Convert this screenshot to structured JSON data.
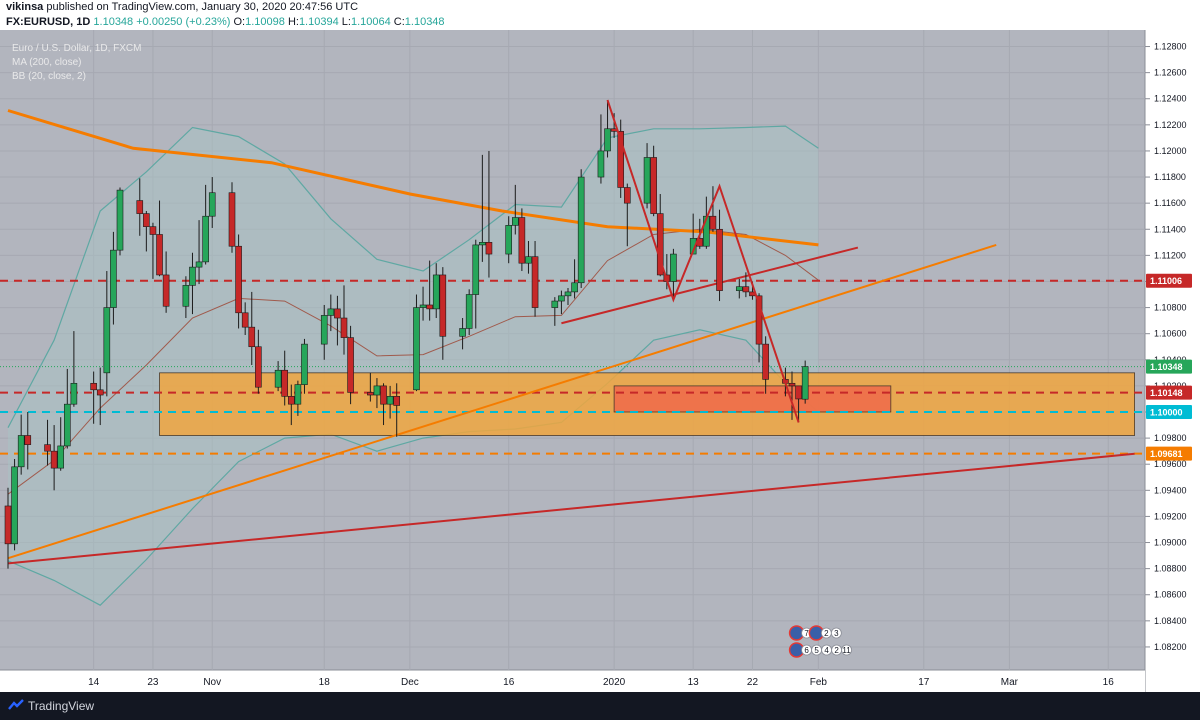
{
  "header": {
    "author": "vikinsa",
    "published_text": "published on TradingView.com, January 30, 2020 20:47:56 UTC",
    "symbol": "FX:EURUSD, 1D",
    "last": "1.10348",
    "change": "+0.00250 (+0.23%)",
    "open_label": "O:",
    "open": "1.10098",
    "high_label": "H:",
    "high": "1.10394",
    "low_label": "L:",
    "low": "1.10064",
    "close_label": "C:",
    "close": "1.10348"
  },
  "legend": {
    "title": "Euro / U.S. Dollar, 1D, FXCM",
    "ma": "MA (200, close)",
    "bb": "BB (20, close, 2)"
  },
  "footer": {
    "brand": "TradingView"
  },
  "colors": {
    "background": "#b2b5be",
    "up": "#26a65a",
    "down": "#c62828",
    "ma": "#f57c00",
    "bb_band": "#5fa8a3",
    "bb_fill": "#a9c1c3",
    "bb_basis": "#a05a4c",
    "zone_orange": "#f0a640",
    "zone_red": "#ef6a4a",
    "line_red": "#c62828",
    "line_orange": "#f57c00",
    "level_cyan": "#00bcd4"
  },
  "chart_data": {
    "type": "candlestick",
    "title": "Euro / U.S. Dollar, 1D, FXCM",
    "ylim": [
      1.081,
      1.1285
    ],
    "yticks": [
      "1.12800",
      "1.12600",
      "1.12400",
      "1.12200",
      "1.12000",
      "1.11800",
      "1.11600",
      "1.11400",
      "1.11200",
      "1.11000",
      "1.10800",
      "1.10600",
      "1.10400",
      "1.10200",
      "1.10000",
      "1.09800",
      "1.09600",
      "1.09400",
      "1.09200",
      "1.09000",
      "1.08800",
      "1.08600",
      "1.08400",
      "1.08200"
    ],
    "xticks": [
      "14",
      "23",
      "Nov",
      "18",
      "Dec",
      "16",
      "2020",
      "13",
      "22",
      "Feb",
      "17",
      "Mar",
      "16"
    ],
    "price_labels": [
      {
        "value": 1.11006,
        "text": "1.11006",
        "color": "#c62828"
      },
      {
        "value": 1.10348,
        "text": "1.10348",
        "color": "#26a65a"
      },
      {
        "value": 1.10148,
        "text": "1.10148",
        "color": "#c62828"
      },
      {
        "value": 1.1,
        "text": "1.10000",
        "color": "#00bcd4"
      },
      {
        "value": 1.09681,
        "text": "1.09681",
        "color": "#f57c00"
      }
    ],
    "levels": [
      {
        "value": 1.11006,
        "color": "#c62828",
        "style": "dashed"
      },
      {
        "value": 1.10148,
        "color": "#c62828",
        "style": "dashed"
      },
      {
        "value": 1.1,
        "color": "#00bcd4",
        "style": "dashed"
      },
      {
        "value": 1.09681,
        "color": "#f57c00",
        "style": "dashed"
      }
    ],
    "zones": [
      {
        "name": "support-zone",
        "from": "2019-10-24",
        "to": "2020-03-20",
        "top": 1.103,
        "bottom": 1.0982,
        "color": "#f0a640"
      },
      {
        "name": "demand-zone",
        "from": "2020-01-01",
        "to": "2020-02-12",
        "top": 1.102,
        "bottom": 1.1,
        "color": "#ef6a4a"
      }
    ],
    "trendlines": [
      {
        "name": "rising-support",
        "from": [
          "2019-10-01",
          1.0884
        ],
        "to": [
          "2020-03-20",
          1.0968
        ],
        "color": "#c62828"
      },
      {
        "name": "orange-trend",
        "from": [
          "2019-10-01",
          1.0888
        ],
        "to": [
          "2020-02-28",
          1.1128
        ],
        "color": "#f57c00"
      },
      {
        "name": "red-trend",
        "from": [
          "2019-12-24",
          1.1068
        ],
        "to": [
          "2020-02-07",
          1.1126
        ],
        "color": "#c62828"
      }
    ],
    "pattern": [
      [
        "2019-12-31",
        1.1239
      ],
      [
        "2020-01-10",
        1.1086
      ],
      [
        "2020-01-17",
        1.1173
      ],
      [
        "2020-01-29",
        1.0992
      ]
    ],
    "candles": [
      {
        "d": "2019-10-01",
        "o": 1.0928,
        "h": 1.0942,
        "l": 1.088,
        "c": 1.0899
      },
      {
        "d": "2019-10-02",
        "o": 1.0899,
        "h": 1.0964,
        "l": 1.0894,
        "c": 1.0958
      },
      {
        "d": "2019-10-03",
        "o": 1.0958,
        "h": 1.0998,
        "l": 1.0952,
        "c": 1.0982
      },
      {
        "d": "2019-10-04",
        "o": 1.0982,
        "h": 1.1,
        "l": 1.0956,
        "c": 1.0975
      },
      {
        "d": "2019-10-07",
        "o": 1.0975,
        "h": 1.0994,
        "l": 1.0959,
        "c": 1.097
      },
      {
        "d": "2019-10-08",
        "o": 1.097,
        "h": 1.099,
        "l": 1.094,
        "c": 1.0957
      },
      {
        "d": "2019-10-09",
        "o": 1.0957,
        "h": 1.0996,
        "l": 1.0955,
        "c": 1.0974
      },
      {
        "d": "2019-10-10",
        "o": 1.0974,
        "h": 1.1033,
        "l": 1.0972,
        "c": 1.1006
      },
      {
        "d": "2019-10-11",
        "o": 1.1006,
        "h": 1.1062,
        "l": 1.1004,
        "c": 1.1022
      },
      {
        "d": "2019-10-14",
        "o": 1.1022,
        "h": 1.1031,
        "l": 1.0991,
        "c": 1.1017
      },
      {
        "d": "2019-10-15",
        "o": 1.1017,
        "h": 1.1034,
        "l": 1.099,
        "c": 1.1013
      },
      {
        "d": "2019-10-16",
        "o": 1.103,
        "h": 1.1108,
        "l": 1.1012,
        "c": 1.108
      },
      {
        "d": "2019-10-17",
        "o": 1.108,
        "h": 1.1138,
        "l": 1.1067,
        "c": 1.1124
      },
      {
        "d": "2019-10-18",
        "o": 1.1124,
        "h": 1.1172,
        "l": 1.112,
        "c": 1.117
      },
      {
        "d": "2019-10-21",
        "o": 1.1162,
        "h": 1.1179,
        "l": 1.1135,
        "c": 1.1152
      },
      {
        "d": "2019-10-22",
        "o": 1.1152,
        "h": 1.1154,
        "l": 1.1123,
        "c": 1.1142
      },
      {
        "d": "2019-10-23",
        "o": 1.1142,
        "h": 1.1145,
        "l": 1.1102,
        "c": 1.1136
      },
      {
        "d": "2019-10-24",
        "o": 1.1136,
        "h": 1.1162,
        "l": 1.1104,
        "c": 1.1105
      },
      {
        "d": "2019-10-25",
        "o": 1.1105,
        "h": 1.1123,
        "l": 1.1076,
        "c": 1.1081
      },
      {
        "d": "2019-10-28",
        "o": 1.1081,
        "h": 1.1104,
        "l": 1.1072,
        "c": 1.1097
      },
      {
        "d": "2019-10-29",
        "o": 1.1097,
        "h": 1.1122,
        "l": 1.1075,
        "c": 1.1111
      },
      {
        "d": "2019-10-30",
        "o": 1.1111,
        "h": 1.1147,
        "l": 1.1098,
        "c": 1.1115
      },
      {
        "d": "2019-10-31",
        "o": 1.1115,
        "h": 1.1174,
        "l": 1.1113,
        "c": 1.115
      },
      {
        "d": "2019-11-01",
        "o": 1.115,
        "h": 1.118,
        "l": 1.1141,
        "c": 1.1168
      },
      {
        "d": "2019-11-04",
        "o": 1.1168,
        "h": 1.1176,
        "l": 1.1122,
        "c": 1.1127
      },
      {
        "d": "2019-11-05",
        "o": 1.1127,
        "h": 1.1136,
        "l": 1.1064,
        "c": 1.1076
      },
      {
        "d": "2019-11-06",
        "o": 1.1076,
        "h": 1.1084,
        "l": 1.1059,
        "c": 1.1065
      },
      {
        "d": "2019-11-07",
        "o": 1.1065,
        "h": 1.1092,
        "l": 1.1036,
        "c": 1.105
      },
      {
        "d": "2019-11-08",
        "o": 1.105,
        "h": 1.1063,
        "l": 1.1014,
        "c": 1.1019
      },
      {
        "d": "2019-11-11",
        "o": 1.1019,
        "h": 1.1039,
        "l": 1.1016,
        "c": 1.1032
      },
      {
        "d": "2019-11-12",
        "o": 1.1032,
        "h": 1.1047,
        "l": 1.1005,
        "c": 1.1012
      },
      {
        "d": "2019-11-13",
        "o": 1.1012,
        "h": 1.1021,
        "l": 1.099,
        "c": 1.1006
      },
      {
        "d": "2019-11-14",
        "o": 1.1006,
        "h": 1.1024,
        "l": 1.0997,
        "c": 1.1021
      },
      {
        "d": "2019-11-15",
        "o": 1.1021,
        "h": 1.1056,
        "l": 1.1014,
        "c": 1.1052
      },
      {
        "d": "2019-11-18",
        "o": 1.1052,
        "h": 1.1082,
        "l": 1.104,
        "c": 1.1074
      },
      {
        "d": "2019-11-19",
        "o": 1.1074,
        "h": 1.109,
        "l": 1.1062,
        "c": 1.1079
      },
      {
        "d": "2019-11-20",
        "o": 1.1079,
        "h": 1.1089,
        "l": 1.1051,
        "c": 1.1072
      },
      {
        "d": "2019-11-21",
        "o": 1.1072,
        "h": 1.1097,
        "l": 1.1044,
        "c": 1.1057
      },
      {
        "d": "2019-11-22",
        "o": 1.1057,
        "h": 1.1066,
        "l": 1.1006,
        "c": 1.1015
      },
      {
        "d": "2019-11-25",
        "o": 1.1015,
        "h": 1.103,
        "l": 1.1008,
        "c": 1.1013
      },
      {
        "d": "2019-11-26",
        "o": 1.1013,
        "h": 1.1026,
        "l": 1.1003,
        "c": 1.102
      },
      {
        "d": "2019-11-27",
        "o": 1.102,
        "h": 1.1022,
        "l": 1.099,
        "c": 1.1006
      },
      {
        "d": "2019-11-28",
        "o": 1.1006,
        "h": 1.102,
        "l": 1.0995,
        "c": 1.1012
      },
      {
        "d": "2019-11-29",
        "o": 1.1012,
        "h": 1.1022,
        "l": 1.0981,
        "c": 1.1005
      },
      {
        "d": "2019-12-02",
        "o": 1.1017,
        "h": 1.109,
        "l": 1.1016,
        "c": 1.108
      },
      {
        "d": "2019-12-03",
        "o": 1.108,
        "h": 1.1096,
        "l": 1.107,
        "c": 1.1082
      },
      {
        "d": "2019-12-04",
        "o": 1.1082,
        "h": 1.1116,
        "l": 1.107,
        "c": 1.1079
      },
      {
        "d": "2019-12-05",
        "o": 1.1079,
        "h": 1.1114,
        "l": 1.1072,
        "c": 1.1105
      },
      {
        "d": "2019-12-06",
        "o": 1.1105,
        "h": 1.1111,
        "l": 1.104,
        "c": 1.1058
      },
      {
        "d": "2019-12-09",
        "o": 1.1058,
        "h": 1.1072,
        "l": 1.1048,
        "c": 1.1064
      },
      {
        "d": "2019-12-10",
        "o": 1.1064,
        "h": 1.1094,
        "l": 1.1059,
        "c": 1.109
      },
      {
        "d": "2019-12-11",
        "o": 1.109,
        "h": 1.1132,
        "l": 1.1064,
        "c": 1.1128
      },
      {
        "d": "2019-12-12",
        "o": 1.1128,
        "h": 1.1197,
        "l": 1.1115,
        "c": 1.113
      },
      {
        "d": "2019-12-13",
        "o": 1.113,
        "h": 1.12,
        "l": 1.1103,
        "c": 1.1121
      },
      {
        "d": "2019-12-16",
        "o": 1.1121,
        "h": 1.115,
        "l": 1.1114,
        "c": 1.1143
      },
      {
        "d": "2019-12-17",
        "o": 1.1143,
        "h": 1.1174,
        "l": 1.1136,
        "c": 1.1149
      },
      {
        "d": "2019-12-18",
        "o": 1.1149,
        "h": 1.1156,
        "l": 1.1108,
        "c": 1.1114
      },
      {
        "d": "2019-12-19",
        "o": 1.1114,
        "h": 1.1131,
        "l": 1.1106,
        "c": 1.1119
      },
      {
        "d": "2019-12-20",
        "o": 1.1119,
        "h": 1.1131,
        "l": 1.1073,
        "c": 1.108
      },
      {
        "d": "2019-12-23",
        "o": 1.108,
        "h": 1.1088,
        "l": 1.1066,
        "c": 1.1085
      },
      {
        "d": "2019-12-24",
        "o": 1.1085,
        "h": 1.1093,
        "l": 1.1075,
        "c": 1.1089
      },
      {
        "d": "2019-12-25",
        "o": 1.1089,
        "h": 1.1095,
        "l": 1.1082,
        "c": 1.1092
      },
      {
        "d": "2019-12-26",
        "o": 1.1092,
        "h": 1.1117,
        "l": 1.1087,
        "c": 1.1099
      },
      {
        "d": "2019-12-27",
        "o": 1.1099,
        "h": 1.1186,
        "l": 1.1095,
        "c": 1.118
      },
      {
        "d": "2019-12-30",
        "o": 1.118,
        "h": 1.1228,
        "l": 1.1175,
        "c": 1.12
      },
      {
        "d": "2019-12-31",
        "o": 1.12,
        "h": 1.1239,
        "l": 1.1195,
        "c": 1.1217
      },
      {
        "d": "2020-01-01",
        "o": 1.1217,
        "h": 1.1229,
        "l": 1.121,
        "c": 1.1215
      },
      {
        "d": "2020-01-02",
        "o": 1.1215,
        "h": 1.1224,
        "l": 1.1164,
        "c": 1.1172
      },
      {
        "d": "2020-01-03",
        "o": 1.1172,
        "h": 1.1175,
        "l": 1.1127,
        "c": 1.116
      },
      {
        "d": "2020-01-06",
        "o": 1.116,
        "h": 1.1206,
        "l": 1.1156,
        "c": 1.1195
      },
      {
        "d": "2020-01-07",
        "o": 1.1195,
        "h": 1.1204,
        "l": 1.115,
        "c": 1.1152
      },
      {
        "d": "2020-01-08",
        "o": 1.1152,
        "h": 1.1167,
        "l": 1.1104,
        "c": 1.1105
      },
      {
        "d": "2020-01-09",
        "o": 1.1105,
        "h": 1.1121,
        "l": 1.1094,
        "c": 1.11
      },
      {
        "d": "2020-01-10",
        "o": 1.11,
        "h": 1.1125,
        "l": 1.1086,
        "c": 1.1121
      },
      {
        "d": "2020-01-13",
        "o": 1.1121,
        "h": 1.1152,
        "l": 1.1122,
        "c": 1.1133
      },
      {
        "d": "2020-01-14",
        "o": 1.1133,
        "h": 1.1148,
        "l": 1.1125,
        "c": 1.1127
      },
      {
        "d": "2020-01-15",
        "o": 1.1127,
        "h": 1.1165,
        "l": 1.1125,
        "c": 1.115
      },
      {
        "d": "2020-01-16",
        "o": 1.115,
        "h": 1.1173,
        "l": 1.1138,
        "c": 1.114
      },
      {
        "d": "2020-01-17",
        "o": 1.114,
        "h": 1.1155,
        "l": 1.1085,
        "c": 1.1093
      },
      {
        "d": "2020-01-20",
        "o": 1.1093,
        "h": 1.1102,
        "l": 1.1087,
        "c": 1.1096
      },
      {
        "d": "2020-01-21",
        "o": 1.1096,
        "h": 1.1107,
        "l": 1.1088,
        "c": 1.1092
      },
      {
        "d": "2020-01-22",
        "o": 1.1092,
        "h": 1.11,
        "l": 1.1086,
        "c": 1.1089
      },
      {
        "d": "2020-01-23",
        "o": 1.1089,
        "h": 1.1091,
        "l": 1.1038,
        "c": 1.1052
      },
      {
        "d": "2020-01-24",
        "o": 1.1052,
        "h": 1.1058,
        "l": 1.1014,
        "c": 1.1025
      },
      {
        "d": "2020-01-27",
        "o": 1.1025,
        "h": 1.1034,
        "l": 1.1012,
        "c": 1.1022
      },
      {
        "d": "2020-01-28",
        "o": 1.1022,
        "h": 1.1031,
        "l": 1.0994,
        "c": 1.102
      },
      {
        "d": "2020-01-29",
        "o": 1.102,
        "h": 1.102,
        "l": 1.0992,
        "c": 1.101
      },
      {
        "d": "2020-01-30",
        "o": 1.10098,
        "h": 1.10394,
        "l": 1.10064,
        "c": 1.10348
      }
    ],
    "ma200": [
      [
        "2019-10-01",
        1.1231
      ],
      [
        "2019-10-20",
        1.1202
      ],
      [
        "2019-11-10",
        1.1191
      ],
      [
        "2019-12-01",
        1.1167
      ],
      [
        "2019-12-15",
        1.1154
      ],
      [
        "2019-12-31",
        1.1142
      ],
      [
        "2020-01-15",
        1.1138
      ],
      [
        "2020-02-01",
        1.1128
      ]
    ],
    "bb_upper": [
      [
        "2019-10-01",
        1.0988
      ],
      [
        "2019-10-08",
        1.1055
      ],
      [
        "2019-10-15",
        1.1154
      ],
      [
        "2019-10-22",
        1.1184
      ],
      [
        "2019-10-29",
        1.1218
      ],
      [
        "2019-11-05",
        1.1211
      ],
      [
        "2019-11-12",
        1.119
      ],
      [
        "2019-11-19",
        1.1148
      ],
      [
        "2019-11-26",
        1.1117
      ],
      [
        "2019-12-03",
        1.1108
      ],
      [
        "2019-12-10",
        1.1132
      ],
      [
        "2019-12-17",
        1.1159
      ],
      [
        "2019-12-24",
        1.1157
      ],
      [
        "2019-12-31",
        1.121
      ],
      [
        "2020-01-07",
        1.1217
      ],
      [
        "2020-01-14",
        1.1217
      ],
      [
        "2020-01-21",
        1.1218
      ],
      [
        "2020-01-27",
        1.1219
      ],
      [
        "2020-02-01",
        1.1202
      ]
    ],
    "bb_lower": [
      [
        "2019-10-01",
        1.0886
      ],
      [
        "2019-10-08",
        1.0871
      ],
      [
        "2019-10-15",
        1.0852
      ],
      [
        "2019-10-22",
        1.0887
      ],
      [
        "2019-10-29",
        1.0926
      ],
      [
        "2019-11-05",
        1.0962
      ],
      [
        "2019-11-12",
        1.098
      ],
      [
        "2019-11-19",
        1.0983
      ],
      [
        "2019-11-26",
        1.097
      ],
      [
        "2019-12-03",
        1.098
      ],
      [
        "2019-12-10",
        1.0985
      ],
      [
        "2019-12-17",
        1.0987
      ],
      [
        "2019-12-24",
        1.0992
      ],
      [
        "2019-12-31",
        1.1022
      ],
      [
        "2020-01-07",
        1.1055
      ],
      [
        "2020-01-14",
        1.1063
      ],
      [
        "2020-01-21",
        1.1055
      ],
      [
        "2020-01-27",
        1.1022
      ],
      [
        "2020-02-01",
        1.1
      ]
    ],
    "bb_basis": [
      [
        "2019-10-01",
        1.0937
      ],
      [
        "2019-10-08",
        1.0963
      ],
      [
        "2019-10-15",
        1.1003
      ],
      [
        "2019-10-22",
        1.1036
      ],
      [
        "2019-10-29",
        1.1072
      ],
      [
        "2019-11-05",
        1.1087
      ],
      [
        "2019-11-12",
        1.1085
      ],
      [
        "2019-11-19",
        1.1066
      ],
      [
        "2019-11-26",
        1.1043
      ],
      [
        "2019-12-03",
        1.1044
      ],
      [
        "2019-12-10",
        1.1058
      ],
      [
        "2019-12-17",
        1.1073
      ],
      [
        "2019-12-24",
        1.1074
      ],
      [
        "2019-12-31",
        1.1116
      ],
      [
        "2020-01-07",
        1.1136
      ],
      [
        "2020-01-14",
        1.114
      ],
      [
        "2020-01-21",
        1.1136
      ],
      [
        "2020-01-27",
        1.112
      ],
      [
        "2020-02-01",
        1.1101
      ]
    ],
    "events": [
      {
        "d": "2020-01-29",
        "row": 1,
        "items": [
          "7",
          "5"
        ]
      },
      {
        "d": "2020-02-01",
        "row": 1,
        "items": [
          "2",
          "3"
        ]
      },
      {
        "d": "2020-01-29",
        "row": 2,
        "items": [
          "6",
          "5",
          "4",
          "2",
          "11"
        ]
      }
    ]
  }
}
